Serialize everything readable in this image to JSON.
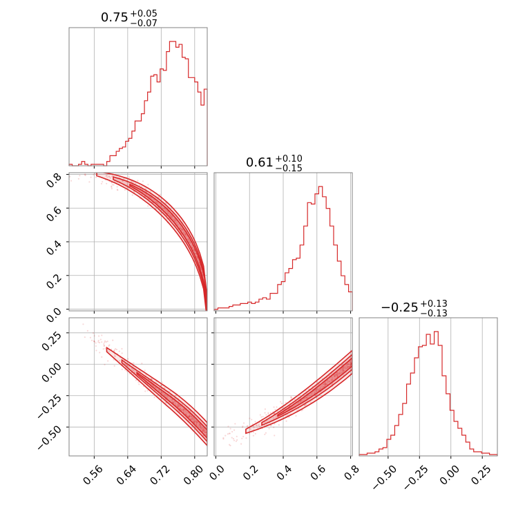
{
  "chart_data": {
    "type": "corner",
    "color": "#d62728",
    "grid": true,
    "parameters": [
      {
        "title": {
          "median": "0.75",
          "plus": "+0.05",
          "minus": "−0.07"
        },
        "range": [
          0.5,
          0.83
        ],
        "ticks": [
          {
            "value": 0.56,
            "label": "0.56"
          },
          {
            "value": 0.64,
            "label": "0.64"
          },
          {
            "value": 0.72,
            "label": "0.72"
          },
          {
            "value": 0.8,
            "label": "0.80"
          }
        ],
        "histogram": [
          1,
          0,
          0,
          1,
          3,
          1,
          0,
          1,
          1,
          1,
          1,
          0,
          3,
          7,
          7,
          10,
          12,
          13,
          17,
          19,
          24,
          31,
          31,
          36,
          45,
          51,
          62,
          63,
          58,
          67,
          66,
          79,
          86,
          86,
          82,
          84,
          75,
          74,
          61,
          61,
          58,
          51,
          42,
          53
        ]
      },
      {
        "title": {
          "median": "0.61",
          "plus": "+0.10",
          "minus": "−0.15"
        },
        "range": [
          -0.01,
          0.81
        ],
        "ticks": [
          {
            "value": 0.0,
            "label": "0.0"
          },
          {
            "value": 0.2,
            "label": "0.2"
          },
          {
            "value": 0.4,
            "label": "0.4"
          },
          {
            "value": 0.6,
            "label": "0.6"
          },
          {
            "value": 0.8,
            "label": "0.8"
          }
        ],
        "histogram": [
          1,
          2,
          2,
          2,
          3,
          4,
          4,
          5,
          5,
          6,
          5,
          6,
          8,
          9,
          8,
          12,
          12,
          18,
          20,
          26,
          29,
          35,
          36,
          45,
          58,
          74,
          73,
          80,
          85,
          78,
          70,
          58,
          45,
          34,
          24,
          18,
          13
        ]
      },
      {
        "title": {
          "median": "−0.25",
          "plus": "+0.13",
          "minus": "−0.13"
        },
        "range": [
          -0.73,
          0.37
        ],
        "ticks": [
          {
            "value": -0.5,
            "label": "−0.50"
          },
          {
            "value": -0.25,
            "label": "−0.25"
          },
          {
            "value": 0.0,
            "label": "0.00"
          },
          {
            "value": 0.25,
            "label": "0.25"
          }
        ],
        "histogram": [
          1,
          1,
          2,
          2,
          3,
          5,
          6,
          12,
          15,
          22,
          30,
          38,
          52,
          60,
          71,
          79,
          80,
          88,
          81,
          90,
          80,
          58,
          45,
          33,
          25,
          20,
          15,
          10,
          5,
          3,
          3,
          2,
          2,
          1,
          1
        ]
      }
    ]
  }
}
